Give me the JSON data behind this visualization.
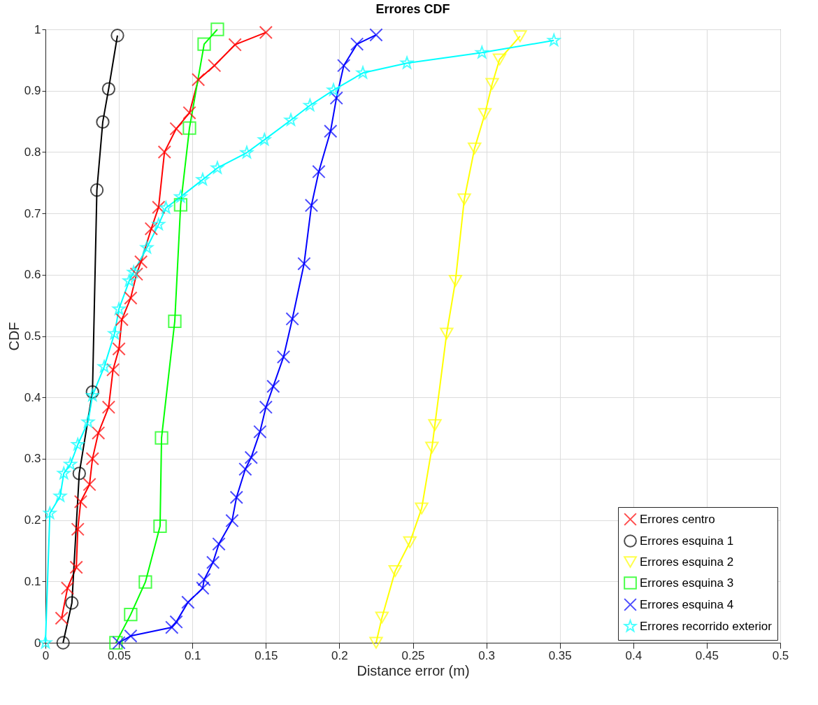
{
  "chart_data": {
    "type": "line",
    "title": "Errores CDF",
    "xlabel": "Distance error (m)",
    "ylabel": "CDF",
    "xlim": [
      0,
      0.5
    ],
    "xticks": [
      0,
      0.05,
      0.1,
      0.15,
      0.2,
      0.25,
      0.3,
      0.35,
      0.4,
      0.45,
      0.5
    ],
    "ylim": [
      0,
      1
    ],
    "yticks": [
      0,
      0.1,
      0.2,
      0.3,
      0.4,
      0.5,
      0.6,
      0.7,
      0.8,
      0.9,
      1
    ],
    "grid": true,
    "legend": "bottom right",
    "line_style": "solid",
    "series": [
      {
        "name": "Errores centro",
        "color": "#ff0000",
        "marker": "cross",
        "x": [
          0.011,
          0.015,
          0.021,
          0.022,
          0.024,
          0.03,
          0.032,
          0.036,
          0.043,
          0.046,
          0.05,
          0.052,
          0.058,
          0.062,
          0.065,
          0.072,
          0.077,
          0.081,
          0.089,
          0.098,
          0.104,
          0.115,
          0.129,
          0.15
        ],
        "values": [
          0.04,
          0.089,
          0.123,
          0.185,
          0.23,
          0.258,
          0.3,
          0.342,
          0.384,
          0.445,
          0.479,
          0.527,
          0.562,
          0.601,
          0.621,
          0.675,
          0.71,
          0.8,
          0.838,
          0.864,
          0.918,
          0.941,
          0.975,
          0.995
        ]
      },
      {
        "name": "Errores esquina 1",
        "color": "#000000",
        "marker": "circle",
        "x": [
          0.012,
          0.018,
          0.023,
          0.032,
          0.035,
          0.039,
          0.043,
          0.049
        ],
        "values": [
          0,
          0.065,
          0.276,
          0.409,
          0.738,
          0.849,
          0.903,
          0.99
        ]
      },
      {
        "name": "Errores esquina 2",
        "color": "#ffff00",
        "marker": "triangle",
        "x": [
          0.225,
          0.229,
          0.238,
          0.248,
          0.256,
          0.263,
          0.265,
          0.273,
          0.279,
          0.285,
          0.292,
          0.299,
          0.304,
          0.309,
          0.323
        ],
        "values": [
          0,
          0.041,
          0.117,
          0.164,
          0.219,
          0.318,
          0.355,
          0.504,
          0.59,
          0.723,
          0.806,
          0.862,
          0.911,
          0.951,
          0.989
        ]
      },
      {
        "name": "Errores esquina 3",
        "color": "#00ff00",
        "marker": "square",
        "x": [
          0.048,
          0.058,
          0.068,
          0.078,
          0.079,
          0.088,
          0.092,
          0.098,
          0.108,
          0.117
        ],
        "values": [
          0,
          0.046,
          0.099,
          0.19,
          0.334,
          0.524,
          0.714,
          0.839,
          0.976,
          1.0
        ]
      },
      {
        "name": "Errores esquina 4",
        "color": "#0000ff",
        "marker": "cross",
        "x": [
          0.05,
          0.058,
          0.086,
          0.089,
          0.097,
          0.107,
          0.108,
          0.114,
          0.118,
          0.127,
          0.13,
          0.136,
          0.14,
          0.146,
          0.15,
          0.155,
          0.162,
          0.168,
          0.176,
          0.181,
          0.186,
          0.194,
          0.198,
          0.203,
          0.212,
          0.225
        ],
        "values": [
          0,
          0.011,
          0.025,
          0.034,
          0.066,
          0.089,
          0.103,
          0.131,
          0.161,
          0.199,
          0.237,
          0.283,
          0.302,
          0.344,
          0.384,
          0.418,
          0.466,
          0.528,
          0.618,
          0.713,
          0.768,
          0.834,
          0.888,
          0.941,
          0.976,
          0.991
        ]
      },
      {
        "name": "Errores recorrido exterior",
        "color": "#00ffff",
        "marker": "star",
        "x": [
          0,
          0.003,
          0.01,
          0.0125,
          0.017,
          0.022,
          0.029,
          0.032,
          0.04,
          0.047,
          0.05,
          0.057,
          0.06,
          0.069,
          0.077,
          0.082,
          0.092,
          0.107,
          0.117,
          0.137,
          0.149,
          0.167,
          0.18,
          0.196,
          0.216,
          0.246,
          0.297,
          0.346
        ],
        "values": [
          0,
          0.211,
          0.239,
          0.276,
          0.291,
          0.323,
          0.36,
          0.403,
          0.45,
          0.504,
          0.544,
          0.59,
          0.604,
          0.644,
          0.682,
          0.709,
          0.727,
          0.755,
          0.774,
          0.799,
          0.82,
          0.852,
          0.876,
          0.901,
          0.929,
          0.945,
          0.962,
          0.982
        ]
      }
    ]
  }
}
